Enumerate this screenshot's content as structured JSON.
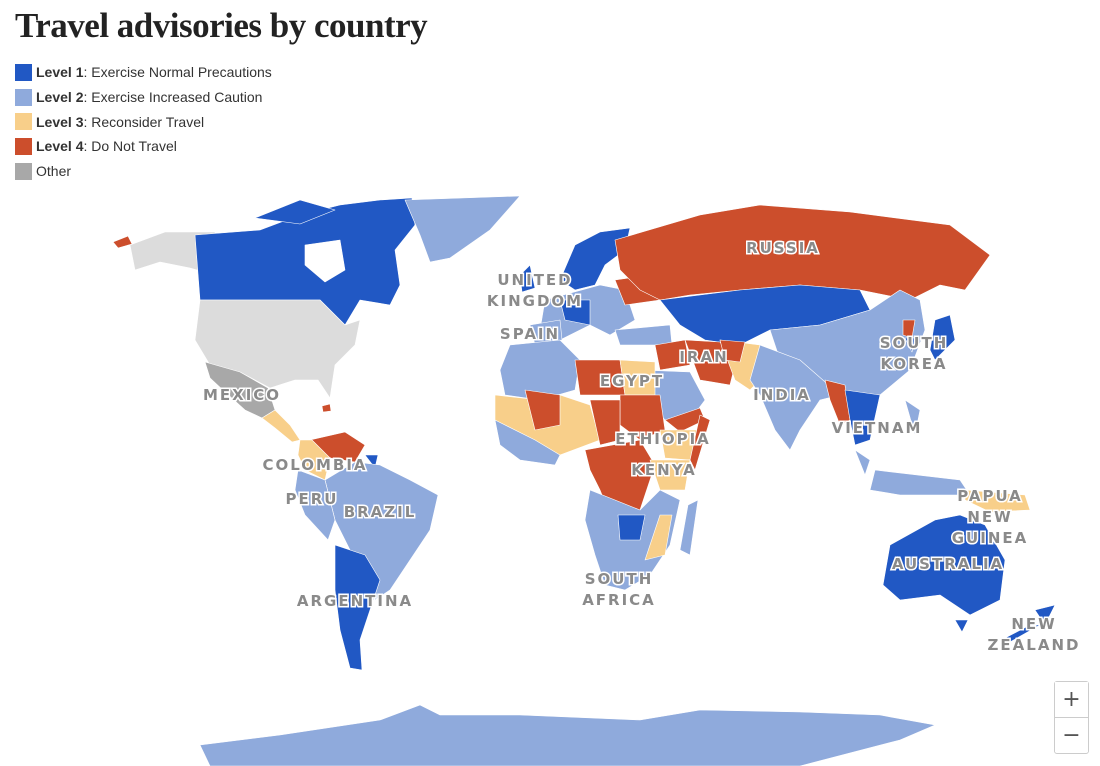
{
  "title": "Travel advisories by country",
  "legend": [
    {
      "label": "Level 1",
      "text": ": Exercise Normal Precautions",
      "color": "#2158c4"
    },
    {
      "label": "Level 2",
      "text": ": Exercise Increased Caution",
      "color": "#8faadc"
    },
    {
      "label": "Level 3",
      "text": ": Reconsider Travel",
      "color": "#f8cf8a"
    },
    {
      "label": "Level 4",
      "text": ": Do Not Travel",
      "color": "#cc4e2c"
    },
    {
      "text": "Other",
      "color": "#a8a8a8"
    }
  ],
  "map_labels": [
    {
      "lines": [
        "RUSSIA"
      ]
    },
    {
      "lines": [
        "UNITED",
        "KINGDOM"
      ]
    },
    {
      "lines": [
        "SPAIN"
      ]
    },
    {
      "lines": [
        "MEXICO"
      ]
    },
    {
      "lines": [
        "IRAN"
      ]
    },
    {
      "lines": [
        "EGYPT"
      ]
    },
    {
      "lines": [
        "INDIA"
      ]
    },
    {
      "lines": [
        "SOUTH",
        "KOREA"
      ]
    },
    {
      "lines": [
        "VIETNAM"
      ]
    },
    {
      "lines": [
        "ETHIOPIA"
      ]
    },
    {
      "lines": [
        "KENYA"
      ]
    },
    {
      "lines": [
        "COLOMBIA"
      ]
    },
    {
      "lines": [
        "PERU"
      ]
    },
    {
      "lines": [
        "BRAZIL"
      ]
    },
    {
      "lines": [
        "ARGENTINA"
      ]
    },
    {
      "lines": [
        "SOUTH",
        "AFRICA"
      ]
    },
    {
      "lines": [
        "PAPUA",
        "NEW",
        "GUINEA"
      ]
    },
    {
      "lines": [
        "AUSTRALIA"
      ]
    },
    {
      "lines": [
        "NEW",
        "ZEALAND"
      ]
    }
  ],
  "zoom": {
    "in": "+",
    "out": "−"
  }
}
